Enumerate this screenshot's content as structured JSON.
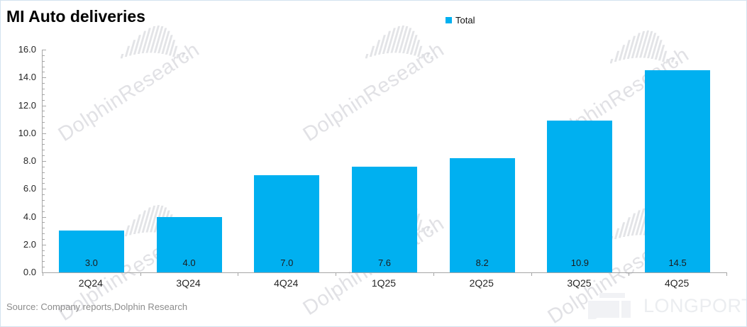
{
  "title": "MI Auto deliveries",
  "legend": {
    "label": "Total",
    "swatch_color": "#00b0f0"
  },
  "chart_data": {
    "type": "bar",
    "title": "MI Auto deliveries",
    "categories": [
      "2Q24",
      "3Q24",
      "4Q24",
      "1Q25",
      "2Q25",
      "3Q25",
      "4Q25"
    ],
    "series": [
      {
        "name": "Total",
        "values": [
          3.0,
          4.0,
          7.0,
          7.6,
          8.2,
          10.9,
          14.5
        ]
      }
    ],
    "value_labels": [
      "3.0",
      "4.0",
      "7.0",
      "7.6",
      "8.2",
      "10.9",
      "14.5"
    ],
    "xlabel": "",
    "ylabel": "",
    "ylim": [
      0,
      16
    ],
    "ytick_step": 2,
    "ytick_labels": [
      "0.0",
      "2.0",
      "4.0",
      "6.0",
      "8.0",
      "10.0",
      "12.0",
      "14.0",
      "16.0"
    ],
    "minor_tick_step": 0.4,
    "grid": false,
    "legend_position": "top-center",
    "bar_color": "#00b0f0"
  },
  "source_note": "Source: Company reports,Dolphin Research",
  "watermark": {
    "text": "DolphinResearch"
  },
  "brand": {
    "logo_text": "LONGPORT"
  },
  "colors": {
    "bar": "#00b0f0",
    "axis": "#a6a6a6",
    "text_dark": "#1c1c1c",
    "text_gray": "#8c8c8c",
    "watermark": "#c9cad0",
    "border": "#d3e2ef",
    "brand_text": "#ebedf0"
  }
}
